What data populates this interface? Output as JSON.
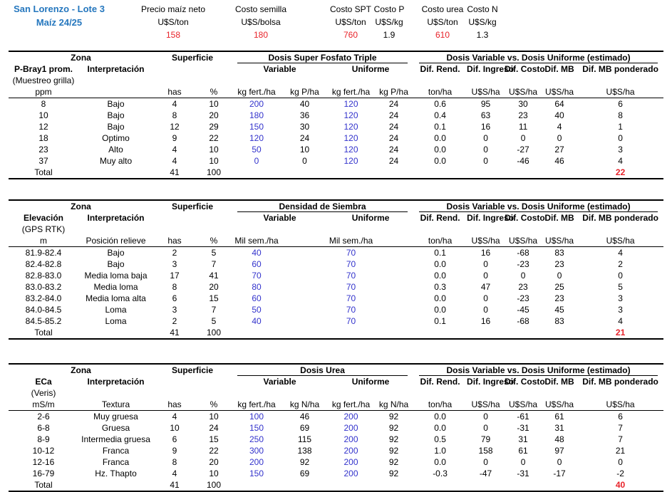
{
  "colors": {
    "title_blue": "#2577BE",
    "value_blue": "#3333CC",
    "value_red": "#E8232A"
  },
  "header": {
    "title_line1": "San Lorenzo - Lote 3",
    "title_line2": "Maíz 24/25",
    "costs": [
      {
        "label": "Precio maíz neto",
        "unit": "U$S/ton",
        "value": "158",
        "value_color": "red"
      },
      {
        "label": "Costo semilla",
        "unit": "U$S/bolsa",
        "value": "180",
        "value_color": "red"
      },
      {
        "label": "Costo SPT",
        "unit": "U$S/ton",
        "value": "760",
        "value_color": "red"
      },
      {
        "label": "Costo P",
        "unit": "U$S/kg",
        "value": "1.9",
        "value_color": "black"
      },
      {
        "label": "Costo urea",
        "unit": "U$S/ton",
        "value": "610",
        "value_color": "red"
      },
      {
        "label": "Costo N",
        "unit": "U$S/kg",
        "value": "1.3",
        "value_color": "black"
      }
    ]
  },
  "shared_headers": {
    "zona": "Zona",
    "superficie": "Superficie",
    "comparison": "Dosis Variable vs. Dosis Uniforme (estimado)",
    "interpretacion": "Interpretación",
    "variable": "Variable",
    "uniforme": "Uniforme",
    "dif_rend": "Dif. Rend.",
    "dif_ingreso": "Dif. Ingreso",
    "dif_costo": "Dif. Costo",
    "dif_mb": "Dif. MB",
    "dif_mb_pond": "Dif. MB ponderado"
  },
  "tables": [
    {
      "dose_title": "Dosis Super Fosfato Triple",
      "zone_label": "P-Bray1 prom.",
      "zone_sublabel": "(Muestreo grilla)",
      "units": [
        "ppm",
        "",
        "has",
        "%",
        "kg fert./ha",
        "kg P/ha",
        "kg fert./ha",
        "kg P/ha",
        "ton/ha",
        "U$S/ha",
        "U$S/ha",
        "U$S/ha",
        "U$S/ha"
      ],
      "rows": [
        [
          "8",
          "Bajo",
          "4",
          "10",
          "200",
          "40",
          "120",
          "24",
          "0.6",
          "95",
          "30",
          "64",
          "6"
        ],
        [
          "10",
          "Bajo",
          "8",
          "20",
          "180",
          "36",
          "120",
          "24",
          "0.4",
          "63",
          "23",
          "40",
          "8"
        ],
        [
          "12",
          "Bajo",
          "12",
          "29",
          "150",
          "30",
          "120",
          "24",
          "0.1",
          "16",
          "11",
          "4",
          "1"
        ],
        [
          "18",
          "Optimo",
          "9",
          "22",
          "120",
          "24",
          "120",
          "24",
          "0.0",
          "0",
          "0",
          "0",
          "0"
        ],
        [
          "23",
          "Alto",
          "4",
          "10",
          "50",
          "10",
          "120",
          "24",
          "0.0",
          "0",
          "-27",
          "27",
          "3"
        ],
        [
          "37",
          "Muy alto",
          "4",
          "10",
          "0",
          "0",
          "120",
          "24",
          "0.0",
          "0",
          "-46",
          "46",
          "4"
        ]
      ],
      "total": {
        "label": "Total",
        "has": "41",
        "pct": "100",
        "mb_pond": "22"
      }
    },
    {
      "dose_title": "Densidad de Siembra",
      "zone_label": "Elevación",
      "zone_sublabel": "(GPS RTK)",
      "units": [
        "m",
        "Posición relieve",
        "has",
        "%",
        "Mil sem./ha",
        "",
        "Mil sem./ha",
        "",
        "ton/ha",
        "U$S/ha",
        "U$S/ha",
        "U$S/ha",
        "U$S/ha"
      ],
      "rows": [
        [
          "81.9-82.4",
          "Bajo",
          "2",
          "5",
          "40",
          "",
          "70",
          "",
          "0.1",
          "16",
          "-68",
          "83",
          "4"
        ],
        [
          "82.4-82.8",
          "Bajo",
          "3",
          "7",
          "60",
          "",
          "70",
          "",
          "0.0",
          "0",
          "-23",
          "23",
          "2"
        ],
        [
          "82.8-83.0",
          "Media loma baja",
          "17",
          "41",
          "70",
          "",
          "70",
          "",
          "0.0",
          "0",
          "0",
          "0",
          "0"
        ],
        [
          "83.0-83.2",
          "Media loma",
          "8",
          "20",
          "80",
          "",
          "70",
          "",
          "0.3",
          "47",
          "23",
          "25",
          "5"
        ],
        [
          "83.2-84.0",
          "Media loma alta",
          "6",
          "15",
          "60",
          "",
          "70",
          "",
          "0.0",
          "0",
          "-23",
          "23",
          "3"
        ],
        [
          "84.0-84.5",
          "Loma",
          "3",
          "7",
          "50",
          "",
          "70",
          "",
          "0.0",
          "0",
          "-45",
          "45",
          "3"
        ],
        [
          "84.5-85.2",
          "Loma",
          "2",
          "5",
          "40",
          "",
          "70",
          "",
          "0.1",
          "16",
          "-68",
          "83",
          "4"
        ]
      ],
      "total": {
        "label": "Total",
        "has": "41",
        "pct": "100",
        "mb_pond": "21"
      }
    },
    {
      "dose_title": "Dosis Urea",
      "zone_label": "ECa",
      "zone_sublabel": "(Veris)",
      "units": [
        "mS/m",
        "Textura",
        "has",
        "%",
        "kg fert./ha",
        "kg N/ha",
        "kg fert./ha",
        "kg N/ha",
        "ton/ha",
        "U$S/ha",
        "U$S/ha",
        "U$S/ha",
        "U$S/ha"
      ],
      "rows": [
        [
          "2-6",
          "Muy gruesa",
          "4",
          "10",
          "100",
          "46",
          "200",
          "92",
          "0.0",
          "0",
          "-61",
          "61",
          "6"
        ],
        [
          "6-8",
          "Gruesa",
          "10",
          "24",
          "150",
          "69",
          "200",
          "92",
          "0.0",
          "0",
          "-31",
          "31",
          "7"
        ],
        [
          "8-9",
          "Intermedia gruesa",
          "6",
          "15",
          "250",
          "115",
          "200",
          "92",
          "0.5",
          "79",
          "31",
          "48",
          "7"
        ],
        [
          "10-12",
          "Franca",
          "9",
          "22",
          "300",
          "138",
          "200",
          "92",
          "1.0",
          "158",
          "61",
          "97",
          "21"
        ],
        [
          "12-16",
          "Franca",
          "8",
          "20",
          "200",
          "92",
          "200",
          "92",
          "0.0",
          "0",
          "0",
          "0",
          "0"
        ],
        [
          "16-79",
          "Hz. Thapto",
          "4",
          "10",
          "150",
          "69",
          "200",
          "92",
          "-0.3",
          "-47",
          "-31",
          "-17",
          "-2"
        ]
      ],
      "total": {
        "label": "Total",
        "has": "41",
        "pct": "100",
        "mb_pond": "40"
      }
    }
  ]
}
